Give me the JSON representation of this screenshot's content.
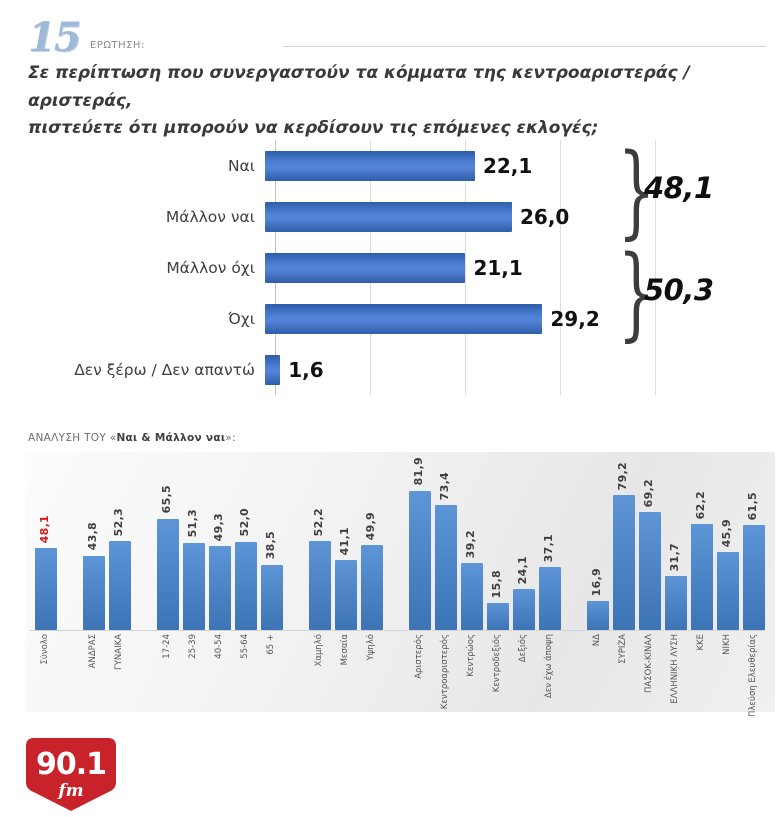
{
  "header": {
    "question_number": "15",
    "question_label": "ΕΡΩΤΗΣΗ:",
    "question_line1": "Σε περίπτωση που συνεργαστούν τα κόμματα της κεντροαριστεράς / αριστεράς,",
    "question_line2": "πιστεύετε ότι μπορούν να κερδίσουν τις επόμενες εκλογές;"
  },
  "analysis": {
    "title_prefix": "ΑΝΑΛΥΣΗ ΤΟΥ «",
    "title_bold": "Ναι & Μάλλον ναι",
    "title_suffix": "»:"
  },
  "footer": {
    "logo_main": "90.1",
    "logo_sub": "fm"
  },
  "colors": {
    "bar_blue": "#4a82c4",
    "highlight_red": "#d11a20",
    "logo_red": "#c8232b",
    "gridline_gray": "#dcdcdc"
  },
  "chart_data": [
    {
      "type": "bar",
      "orientation": "horizontal",
      "categories": [
        "Ναι",
        "Μάλλον ναι",
        "Μάλλον όχι",
        "Όχι",
        "Δεν ξέρω / Δεν απαντώ"
      ],
      "values": [
        22.1,
        26.0,
        21.1,
        29.2,
        1.6
      ],
      "value_labels": [
        "22,1",
        "26,0",
        "21,1",
        "29,2",
        "1,6"
      ],
      "xlim": [
        0,
        40
      ],
      "gridlines": true,
      "legend": "none",
      "annotations": [
        {
          "label": "48,1",
          "covers": [
            "Ναι",
            "Μάλλον ναι"
          ]
        },
        {
          "label": "50,3",
          "covers": [
            "Μάλλον όχι",
            "Όχι"
          ]
        }
      ]
    },
    {
      "type": "bar",
      "orientation": "vertical",
      "title": "ΑΝΑΛΥΣΗ ΤΟΥ «Ναι & Μάλλον ναι»:",
      "ylim": [
        0,
        90
      ],
      "legend": "none",
      "groups": [
        {
          "bars": [
            {
              "label": "Σύνολο",
              "value": 48.1,
              "display": "48,1",
              "highlight": true
            }
          ]
        },
        {
          "bars": [
            {
              "label": "ΑΝΔΡΑΣ",
              "value": 43.8,
              "display": "43,8"
            },
            {
              "label": "ΓΥΝΑΙΚΑ",
              "value": 52.3,
              "display": "52,3"
            }
          ]
        },
        {
          "bars": [
            {
              "label": "17-24",
              "value": 65.5,
              "display": "65,5"
            },
            {
              "label": "25-39",
              "value": 51.3,
              "display": "51,3"
            },
            {
              "label": "40-54",
              "value": 49.3,
              "display": "49,3"
            },
            {
              "label": "55-64",
              "value": 52.0,
              "display": "52,0"
            },
            {
              "label": "65 +",
              "value": 38.5,
              "display": "38,5"
            }
          ]
        },
        {
          "bars": [
            {
              "label": "Χαμηλό",
              "value": 52.2,
              "display": "52,2"
            },
            {
              "label": "Μεσαία",
              "value": 41.1,
              "display": "41,1"
            },
            {
              "label": "Υψηλό",
              "value": 49.9,
              "display": "49,9"
            }
          ]
        },
        {
          "bars": [
            {
              "label": "Αριστερός",
              "value": 81.9,
              "display": "81,9"
            },
            {
              "label": "Κεντροαριστερός",
              "value": 73.4,
              "display": "73,4"
            },
            {
              "label": "Κεντρώος",
              "value": 39.2,
              "display": "39,2"
            },
            {
              "label": "Κεντροδεξιός",
              "value": 15.8,
              "display": "15,8"
            },
            {
              "label": "Δεξιός",
              "value": 24.1,
              "display": "24,1"
            },
            {
              "label": "Δεν έχω άποψη",
              "value": 37.1,
              "display": "37,1"
            }
          ]
        },
        {
          "bars": [
            {
              "label": "ΝΔ",
              "value": 16.9,
              "display": "16,9"
            },
            {
              "label": "ΣΥΡΙΖΑ",
              "value": 79.2,
              "display": "79,2"
            },
            {
              "label": "ΠΑΣΟΚ-ΚΙΝΑΛ",
              "value": 69.2,
              "display": "69,2"
            },
            {
              "label": "ΕΛΛΗΝΙΚΗ ΛΥΣΗ",
              "value": 31.7,
              "display": "31,7"
            },
            {
              "label": "ΚΚΕ",
              "value": 62.2,
              "display": "62,2"
            },
            {
              "label": "ΝΙΚΗ",
              "value": 45.9,
              "display": "45,9"
            },
            {
              "label": "Πλεύση Ελευθερίας",
              "value": 61.5,
              "display": "61,5"
            }
          ]
        }
      ]
    }
  ]
}
